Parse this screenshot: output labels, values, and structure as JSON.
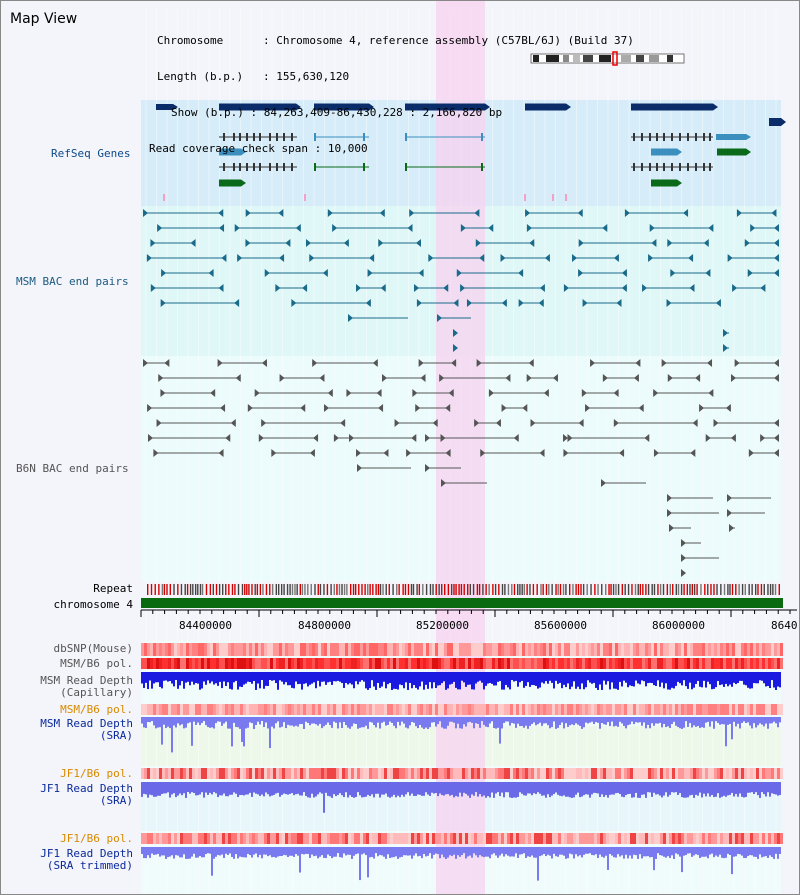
{
  "view": {
    "title": "Map View"
  },
  "info": {
    "chromosome_label": "Chromosome",
    "chromosome_value": "Chromosome 4, reference assembly (C57BL/6J) (Build 37)",
    "length_label": "Length (b.p.)",
    "length_value": "155,630,120",
    "show_label": "Show (b.p.)",
    "show_value": "84,263,409-86,430,228 : 2,166,820 bp",
    "coverage_label": "Read coverage check span",
    "coverage_value": "10,000"
  },
  "tracks": {
    "refseq": "RefSeq Genes",
    "msm_bac": "MSM BAC end pairs",
    "b6n_bac": "B6N BAC end pairs",
    "repeat": "Repeat",
    "chromosome": "chromosome 4",
    "dbsnp": "dbSNP(Mouse)",
    "msm_b6_pol_1": "MSM/B6 pol.",
    "msm_depth_cap_1": "MSM Read Depth",
    "msm_depth_cap_2": "(Capillary)",
    "msm_b6_pol_2": "MSM/B6 pol.",
    "msm_depth_sra_1": "MSM Read Depth",
    "msm_depth_sra_2": "(SRA)",
    "jf1_b6_pol_1": "JF1/B6 pol.",
    "jf1_depth_sra_1": "JF1 Read Depth",
    "jf1_depth_sra_2": "(SRA)",
    "jf1_b6_pol_2": "JF1/B6 pol.",
    "jf1_depth_trim_1": "JF1 Read Depth",
    "jf1_depth_trim_2": "(SRA trimmed)"
  },
  "axis": {
    "ticks": [
      "84400000",
      "84800000",
      "85200000",
      "85600000",
      "86000000",
      "8640"
    ]
  },
  "colors": {
    "highlight": "#f7d3f0",
    "refseq_bg": "#d6ecf8",
    "bac_bg": "#e0f7f7",
    "gene_dark": "#0a2d6a",
    "gene_teal": "#3a8fbf",
    "gene_green": "#0a6a1a",
    "chromosome_bar": "#0a6a10",
    "msm_depth": "#1a1ae0",
    "sra_depth": "#7a7af0"
  }
}
